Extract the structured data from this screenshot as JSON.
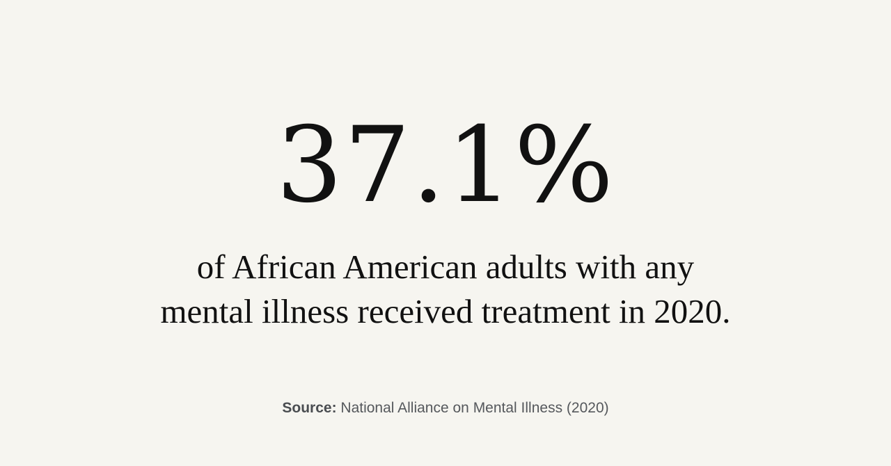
{
  "stat": {
    "value": "37.1%"
  },
  "caption": {
    "line1": "of African American adults with any",
    "line2": "mental illness received treatment in 2020."
  },
  "source": {
    "label": "Source:",
    "text": " National Alliance on Mental Illness (2020)"
  }
}
